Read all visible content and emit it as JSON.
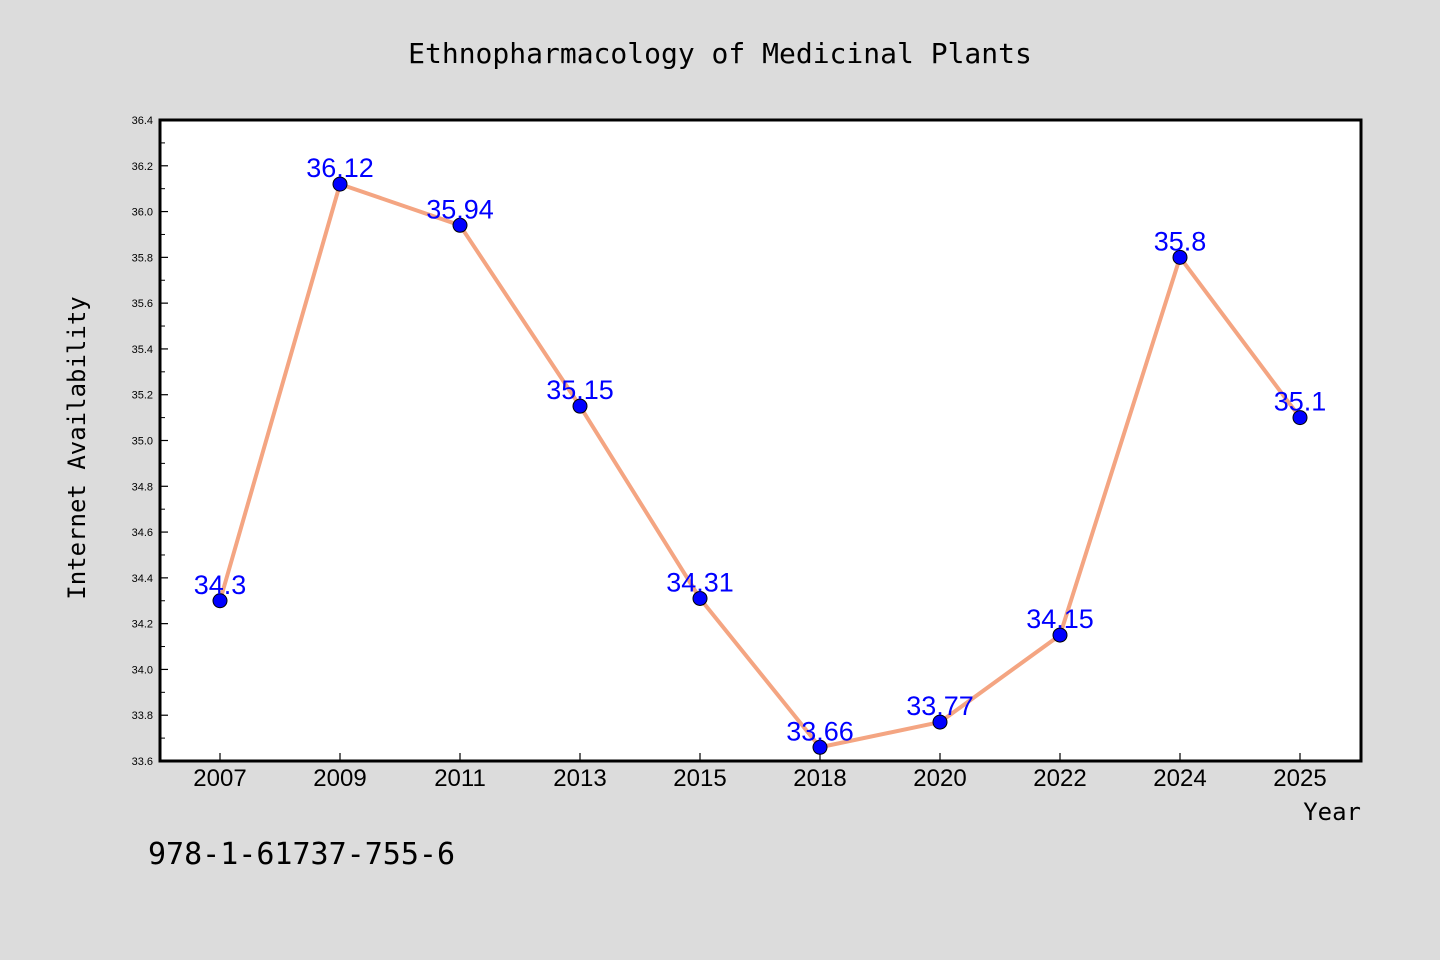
{
  "chart_data": {
    "type": "line",
    "title": "Ethnopharmacology of Medicinal Plants",
    "xlabel": "Year",
    "ylabel": "Internet Availability",
    "categories": [
      "2007",
      "2009",
      "2011",
      "2013",
      "2015",
      "2018",
      "2020",
      "2022",
      "2024",
      "2025"
    ],
    "series": [
      {
        "values": [
          34.3,
          36.12,
          35.94,
          35.15,
          34.31,
          33.66,
          33.77,
          34.15,
          35.8,
          35.1
        ],
        "labels": [
          "34.3",
          "36.12",
          "35.94",
          "35.15",
          "34.31",
          "33.66",
          "33.77",
          "34.15",
          "35.8",
          "35.1"
        ]
      }
    ],
    "ylim": [
      33.6,
      36.4
    ],
    "yticks": [
      "33.6",
      "33.8",
      "34.0",
      "34.2",
      "34.4",
      "34.6",
      "34.8",
      "35.0",
      "35.2",
      "35.4",
      "35.6",
      "35.8",
      "36.0",
      "36.2",
      "36.4"
    ],
    "grid": false,
    "legend": "none"
  },
  "footer_text": "978-1-61737-755-6",
  "colors": {
    "background": "#dcdcdc",
    "plot_area": "#ffffff",
    "line": "#f4a582",
    "marker": "#0000ff",
    "label": "#0000ff"
  }
}
